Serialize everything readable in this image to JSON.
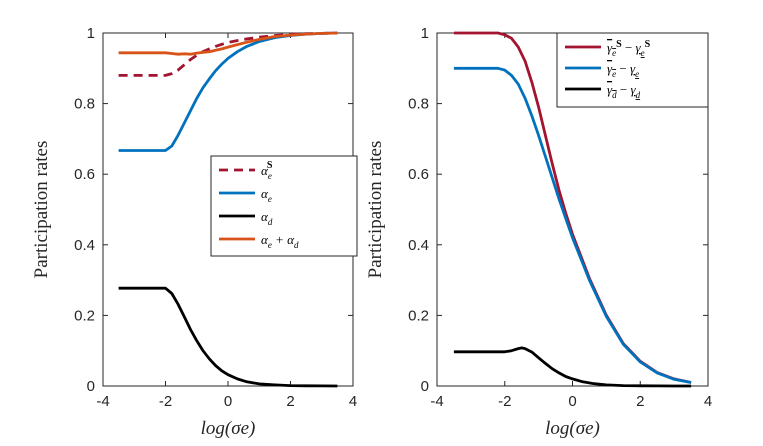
{
  "chart_data": [
    {
      "type": "line",
      "xlabel": "log(σe)",
      "ylabel": "Participation rates",
      "xlim": [
        -4,
        4
      ],
      "ylim": [
        0,
        1
      ],
      "xticks": [
        "-4",
        "-2",
        "0",
        "2",
        "4"
      ],
      "yticks": [
        "0",
        "0.2",
        "0.4",
        "0.6",
        "0.8",
        "1"
      ],
      "legend_position": "center-right",
      "series": [
        {
          "name": "αe^S",
          "label_main": "α",
          "label_sub": "e",
          "label_sup": "S",
          "color": "#A2142F",
          "dash": true,
          "x": [
            -3.5,
            -3.0,
            -2.5,
            -2.0,
            -1.8,
            -1.6,
            -1.4,
            -1.2,
            -1.0,
            -0.8,
            -0.6,
            -0.4,
            -0.2,
            0.0,
            0.5,
            1.0,
            1.5,
            2.0,
            2.5,
            3.0,
            3.5
          ],
          "y": [
            0.88,
            0.88,
            0.88,
            0.88,
            0.885,
            0.895,
            0.91,
            0.925,
            0.937,
            0.947,
            0.955,
            0.962,
            0.968,
            0.973,
            0.982,
            0.988,
            0.993,
            0.996,
            0.998,
            0.999,
            1.0
          ]
        },
        {
          "name": "αe",
          "label_main": "α",
          "label_sub": "e",
          "label_sup": "",
          "color": "#0072BD",
          "dash": false,
          "x": [
            -3.5,
            -3.0,
            -2.5,
            -2.0,
            -1.8,
            -1.6,
            -1.4,
            -1.2,
            -1.0,
            -0.8,
            -0.6,
            -0.4,
            -0.2,
            0.0,
            0.3,
            0.6,
            1.0,
            1.5,
            2.0,
            2.5,
            3.0,
            3.5
          ],
          "y": [
            0.667,
            0.667,
            0.667,
            0.667,
            0.68,
            0.71,
            0.745,
            0.78,
            0.815,
            0.845,
            0.87,
            0.893,
            0.912,
            0.928,
            0.947,
            0.962,
            0.976,
            0.987,
            0.993,
            0.997,
            0.999,
            1.0
          ]
        },
        {
          "name": "αd",
          "label_main": "α",
          "label_sub": "d",
          "label_sup": "",
          "color": "#000000",
          "dash": false,
          "x": [
            -3.5,
            -3.0,
            -2.5,
            -2.0,
            -1.8,
            -1.6,
            -1.4,
            -1.2,
            -1.0,
            -0.8,
            -0.6,
            -0.4,
            -0.2,
            0.0,
            0.3,
            0.6,
            1.0,
            1.5,
            2.0,
            2.5,
            3.0,
            3.5
          ],
          "y": [
            0.277,
            0.277,
            0.277,
            0.277,
            0.262,
            0.232,
            0.196,
            0.16,
            0.128,
            0.1,
            0.077,
            0.058,
            0.043,
            0.032,
            0.02,
            0.012,
            0.006,
            0.003,
            0.001,
            0.0005,
            0.0002,
            0.0
          ]
        },
        {
          "name": "αe+αd",
          "label_main": "α",
          "label_sub": "e",
          "label_sup": "",
          "label_extra": "+ α",
          "label_extra_sub": "d",
          "color": "#D95319",
          "dash": false,
          "x": [
            -3.5,
            -3.0,
            -2.5,
            -2.0,
            -1.8,
            -1.6,
            -1.4,
            -1.2,
            -1.0,
            -0.8,
            -0.6,
            -0.4,
            -0.2,
            0.0,
            0.3,
            0.6,
            1.0,
            1.5,
            2.0,
            2.5,
            3.0,
            3.5
          ],
          "y": [
            0.944,
            0.944,
            0.944,
            0.944,
            0.942,
            0.94,
            0.941,
            0.94,
            0.943,
            0.945,
            0.947,
            0.951,
            0.955,
            0.96,
            0.967,
            0.974,
            0.982,
            0.99,
            0.994,
            0.997,
            0.999,
            1.0
          ]
        }
      ]
    },
    {
      "type": "line",
      "xlabel": "log(σe)",
      "ylabel": "Participation rates",
      "xlim": [
        -4,
        4
      ],
      "ylim": [
        0,
        1
      ],
      "xticks": [
        "-4",
        "-2",
        "0",
        "2",
        "4"
      ],
      "yticks": [
        "0",
        "0.2",
        "0.4",
        "0.6",
        "0.8",
        "1"
      ],
      "legend_position": "top-right",
      "series": [
        {
          "name": "γ̄e^S − γe^S",
          "label_a": "γ",
          "label_a_sub": "e",
          "label_a_sup": "S",
          "label_b": "γ",
          "label_b_sub": "e",
          "label_b_sup": "S",
          "color": "#A2142F",
          "x": [
            -3.5,
            -3.0,
            -2.5,
            -2.2,
            -2.0,
            -1.8,
            -1.6,
            -1.4,
            -1.2,
            -1.0,
            -0.8,
            -0.6,
            -0.4,
            -0.2,
            0.0,
            0.5,
            1.0,
            1.5,
            2.0,
            2.5,
            3.0,
            3.5
          ],
          "y": [
            1.0,
            1.0,
            1.0,
            1.0,
            0.995,
            0.985,
            0.96,
            0.92,
            0.86,
            0.79,
            0.71,
            0.63,
            0.555,
            0.49,
            0.43,
            0.305,
            0.2,
            0.12,
            0.07,
            0.038,
            0.02,
            0.01
          ]
        },
        {
          "name": "γ̄e − γe",
          "label_a": "γ",
          "label_a_sub": "e",
          "label_a_sup": "",
          "label_b": "γ",
          "label_b_sub": "e",
          "label_b_sup": "",
          "color": "#0072BD",
          "x": [
            -3.5,
            -3.0,
            -2.5,
            -2.2,
            -2.0,
            -1.8,
            -1.6,
            -1.4,
            -1.2,
            -1.0,
            -0.8,
            -0.6,
            -0.4,
            -0.2,
            0.0,
            0.5,
            1.0,
            1.5,
            2.0,
            2.5,
            3.0,
            3.5
          ],
          "y": [
            0.9,
            0.9,
            0.9,
            0.9,
            0.895,
            0.88,
            0.855,
            0.815,
            0.765,
            0.71,
            0.65,
            0.59,
            0.53,
            0.475,
            0.42,
            0.3,
            0.197,
            0.118,
            0.068,
            0.037,
            0.019,
            0.01
          ]
        },
        {
          "name": "γ̄d − γd",
          "label_a": "γ",
          "label_a_sub": "d",
          "label_a_sup": "",
          "label_b": "γ",
          "label_b_sub": "d",
          "label_b_sup": "",
          "color": "#000000",
          "x": [
            -3.5,
            -3.0,
            -2.5,
            -2.0,
            -1.8,
            -1.6,
            -1.5,
            -1.4,
            -1.2,
            -1.0,
            -0.8,
            -0.6,
            -0.4,
            -0.2,
            0.0,
            0.3,
            0.6,
            1.0,
            1.5,
            2.0,
            2.5,
            3.0,
            3.5
          ],
          "y": [
            0.097,
            0.097,
            0.097,
            0.097,
            0.1,
            0.106,
            0.108,
            0.106,
            0.096,
            0.08,
            0.064,
            0.049,
            0.037,
            0.027,
            0.02,
            0.012,
            0.007,
            0.003,
            0.001,
            0.0005,
            0.0002,
            0.0001,
            0.0
          ]
        }
      ]
    }
  ]
}
